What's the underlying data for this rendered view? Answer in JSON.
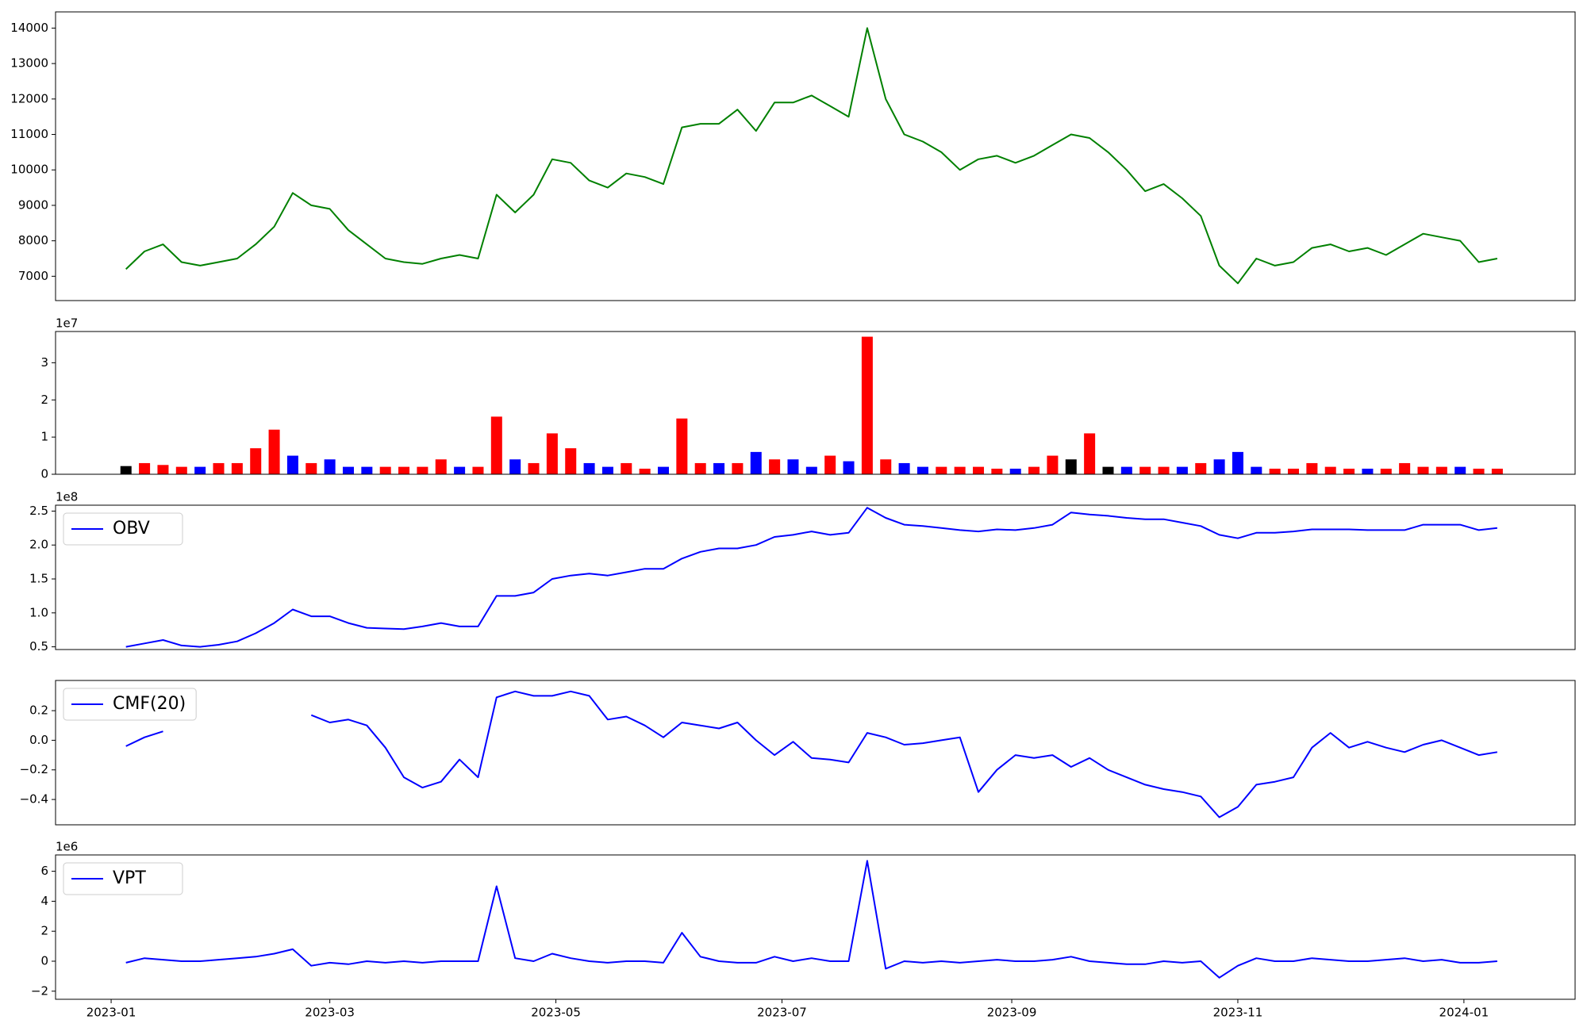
{
  "chart_data": [
    {
      "type": "line",
      "color": "green",
      "x": [
        4,
        9,
        14,
        19,
        24,
        29,
        34,
        39,
        44,
        49,
        54,
        59,
        64,
        69,
        74,
        79,
        84,
        89,
        94,
        99,
        104,
        109,
        114,
        119,
        124,
        129,
        134,
        139,
        144,
        149,
        154,
        159,
        164,
        169,
        174,
        179,
        184,
        189,
        194,
        199,
        204,
        209,
        214,
        219,
        224,
        229,
        234,
        239,
        244,
        249,
        254,
        259,
        264,
        269,
        274,
        279,
        284,
        289,
        294,
        299,
        304,
        309,
        314,
        319,
        324,
        329,
        334,
        339,
        344,
        349,
        354,
        359,
        364,
        369,
        374
      ],
      "values": [
        7200,
        7700,
        7900,
        7400,
        7300,
        7400,
        7500,
        7900,
        8400,
        9350,
        9000,
        8900,
        8300,
        7900,
        7500,
        7400,
        7350,
        7500,
        7600,
        7500,
        9300,
        8800,
        9300,
        10300,
        10200,
        9700,
        9500,
        9900,
        9800,
        9600,
        11200,
        11300,
        11300,
        11700,
        11100,
        11900,
        11900,
        12100,
        11800,
        11500,
        14000,
        12000,
        11000,
        10800,
        10500,
        10000,
        10300,
        10400,
        10200,
        10400,
        10700,
        11000,
        10900,
        10500,
        10000,
        9400,
        9600,
        9200,
        8700,
        7300,
        6800,
        7500,
        7300,
        7400,
        7800,
        7900,
        7700,
        7800,
        7600,
        7900,
        8200,
        8100,
        8000,
        7400,
        7500
      ],
      "xlim": [
        -15,
        395
      ],
      "ylim": [
        6314,
        14457
      ],
      "yticks": [
        7000,
        8000,
        9000,
        10000,
        11000,
        12000,
        13000,
        14000
      ]
    },
    {
      "type": "bar",
      "offset_label": "1e7",
      "x": [
        4,
        9,
        14,
        19,
        24,
        29,
        34,
        39,
        44,
        49,
        54,
        59,
        64,
        69,
        74,
        79,
        84,
        89,
        94,
        99,
        104,
        109,
        114,
        119,
        124,
        129,
        134,
        139,
        144,
        149,
        154,
        159,
        164,
        169,
        174,
        179,
        184,
        189,
        194,
        199,
        204,
        209,
        214,
        219,
        224,
        229,
        234,
        239,
        244,
        249,
        254,
        259,
        264,
        269,
        274,
        279,
        284,
        289,
        294,
        299,
        304,
        309,
        314,
        319,
        324,
        329,
        334,
        339,
        344,
        349,
        354,
        359,
        364,
        369,
        374
      ],
      "values": [
        0.22,
        0.3,
        0.25,
        0.2,
        0.2,
        0.3,
        0.3,
        0.7,
        1.2,
        0.5,
        0.3,
        0.4,
        0.2,
        0.2,
        0.2,
        0.2,
        0.2,
        0.4,
        0.2,
        0.2,
        1.55,
        0.4,
        0.3,
        1.1,
        0.7,
        0.3,
        0.2,
        0.3,
        0.15,
        0.2,
        1.5,
        0.3,
        0.3,
        0.3,
        0.6,
        0.4,
        0.4,
        0.2,
        0.5,
        0.35,
        3.7,
        0.4,
        0.3,
        0.2,
        0.2,
        0.2,
        0.2,
        0.15,
        0.15,
        0.2,
        0.5,
        0.4,
        1.1,
        0.2,
        0.2,
        0.2,
        0.2,
        0.2,
        0.3,
        0.4,
        0.6,
        0.2,
        0.15,
        0.15,
        0.3,
        0.2,
        0.15,
        0.15,
        0.15,
        0.3,
        0.2,
        0.2,
        0.2,
        0.15,
        0.15
      ],
      "colors": [
        "black",
        "red",
        "red",
        "red",
        "blue",
        "red",
        "red",
        "red",
        "red",
        "blue",
        "red",
        "blue",
        "blue",
        "blue",
        "red",
        "red",
        "red",
        "red",
        "blue",
        "red",
        "red",
        "blue",
        "red",
        "red",
        "red",
        "blue",
        "blue",
        "red",
        "red",
        "blue",
        "red",
        "red",
        "blue",
        "red",
        "blue",
        "red",
        "blue",
        "blue",
        "red",
        "blue",
        "red",
        "red",
        "blue",
        "blue",
        "red",
        "red",
        "red",
        "red",
        "blue",
        "red",
        "red",
        "black",
        "red",
        "black",
        "blue",
        "red",
        "red",
        "blue",
        "red",
        "blue",
        "blue",
        "blue",
        "red",
        "red",
        "red",
        "red",
        "red",
        "blue",
        "red",
        "red",
        "red",
        "red",
        "blue",
        "red",
        "red"
      ],
      "xlim": [
        -15,
        395
      ],
      "ylim": [
        0,
        3.84
      ],
      "yticks": [
        0,
        1,
        2,
        3
      ]
    },
    {
      "type": "line",
      "offset_label": "1e8",
      "legend": "upper left",
      "x": [
        4,
        9,
        14,
        19,
        24,
        29,
        34,
        39,
        44,
        49,
        54,
        59,
        64,
        69,
        74,
        79,
        84,
        89,
        94,
        99,
        104,
        109,
        114,
        119,
        124,
        129,
        134,
        139,
        144,
        149,
        154,
        159,
        164,
        169,
        174,
        179,
        184,
        189,
        194,
        199,
        204,
        209,
        214,
        219,
        224,
        229,
        234,
        239,
        244,
        249,
        254,
        259,
        264,
        269,
        274,
        279,
        284,
        289,
        294,
        299,
        304,
        309,
        314,
        319,
        324,
        329,
        334,
        339,
        344,
        349,
        354,
        359,
        364,
        369,
        374
      ],
      "series": [
        {
          "name": "OBV",
          "color": "blue",
          "values": [
            0.5,
            0.55,
            0.6,
            0.52,
            0.5,
            0.53,
            0.58,
            0.7,
            0.85,
            1.05,
            0.95,
            0.95,
            0.85,
            0.78,
            0.77,
            0.76,
            0.8,
            0.85,
            0.8,
            0.8,
            1.25,
            1.25,
            1.3,
            1.5,
            1.55,
            1.58,
            1.55,
            1.6,
            1.65,
            1.65,
            1.8,
            1.9,
            1.95,
            1.95,
            2.0,
            2.12,
            2.15,
            2.2,
            2.15,
            2.18,
            2.55,
            2.4,
            2.3,
            2.28,
            2.25,
            2.22,
            2.2,
            2.23,
            2.22,
            2.25,
            2.3,
            2.48,
            2.45,
            2.43,
            2.4,
            2.38,
            2.38,
            2.33,
            2.28,
            2.15,
            2.1,
            2.18,
            2.18,
            2.2,
            2.23,
            2.23,
            2.23,
            2.22,
            2.22,
            2.22,
            2.3,
            2.3,
            2.3,
            2.22,
            2.25
          ]
        }
      ],
      "xlim": [
        -15,
        395
      ],
      "ylim": [
        0.46,
        2.587
      ],
      "yticks": [
        0.5,
        {
          "value": 1,
          "label": "1.0"
        },
        1.5,
        {
          "value": 2,
          "label": "2.0"
        },
        2.5
      ]
    },
    {
      "type": "line",
      "legend": "upper left",
      "x": [
        4,
        9,
        14,
        19,
        24,
        29,
        34,
        39,
        44,
        49,
        54,
        59,
        64,
        69,
        74,
        79,
        84,
        89,
        94,
        99,
        104,
        109,
        114,
        119,
        124,
        129,
        134,
        139,
        144,
        149,
        154,
        159,
        164,
        169,
        174,
        179,
        184,
        189,
        194,
        199,
        204,
        209,
        214,
        219,
        224,
        229,
        234,
        239,
        244,
        249,
        254,
        259,
        264,
        269,
        274,
        279,
        284,
        289,
        294,
        299,
        304,
        309,
        314,
        319,
        324,
        329,
        334,
        339,
        344,
        349,
        354,
        359,
        364,
        369,
        374
      ],
      "series": [
        {
          "name": "CMF(20)",
          "color": "blue",
          "values": [
            -0.04,
            0.02,
            0.06,
            null,
            null,
            null,
            null,
            null,
            null,
            null,
            0.17,
            0.12,
            0.14,
            0.1,
            -0.05,
            -0.25,
            -0.32,
            -0.28,
            -0.13,
            -0.25,
            0.29,
            0.33,
            0.3,
            0.3,
            0.33,
            0.3,
            0.14,
            0.16,
            0.1,
            0.02,
            0.12,
            0.1,
            0.08,
            0.12,
            0.0,
            -0.1,
            -0.01,
            -0.12,
            -0.13,
            -0.15,
            0.05,
            0.02,
            -0.03,
            -0.02,
            0.0,
            0.02,
            -0.35,
            -0.2,
            -0.1,
            -0.12,
            -0.1,
            -0.18,
            -0.12,
            -0.2,
            -0.25,
            -0.3,
            -0.33,
            -0.35,
            -0.38,
            -0.52,
            -0.45,
            -0.3,
            -0.28,
            -0.25,
            -0.05,
            0.05,
            -0.05,
            -0.01,
            -0.05,
            -0.08,
            -0.03,
            0.0,
            -0.05,
            -0.1,
            -0.08
          ]
        }
      ],
      "xlim": [
        -15,
        395
      ],
      "ylim": [
        -0.571,
        0.404
      ],
      "yticks": [
        {
          "value": -0.4,
          "label": "−0.4"
        },
        {
          "value": -0.2,
          "label": "−0.2"
        },
        {
          "value": 0,
          "label": "0.0"
        },
        0.2
      ]
    },
    {
      "type": "line",
      "offset_label": "1e6",
      "legend": "upper left",
      "x": [
        4,
        9,
        14,
        19,
        24,
        29,
        34,
        39,
        44,
        49,
        54,
        59,
        64,
        69,
        74,
        79,
        84,
        89,
        94,
        99,
        104,
        109,
        114,
        119,
        124,
        129,
        134,
        139,
        144,
        149,
        154,
        159,
        164,
        169,
        174,
        179,
        184,
        189,
        194,
        199,
        204,
        209,
        214,
        219,
        224,
        229,
        234,
        239,
        244,
        249,
        254,
        259,
        264,
        269,
        274,
        279,
        284,
        289,
        294,
        299,
        304,
        309,
        314,
        319,
        324,
        329,
        334,
        339,
        344,
        349,
        354,
        359,
        364,
        369,
        374
      ],
      "series": [
        {
          "name": "VPT",
          "color": "blue",
          "values": [
            -0.1,
            0.2,
            0.1,
            0.0,
            0.0,
            0.1,
            0.2,
            0.3,
            0.5,
            0.8,
            -0.3,
            -0.1,
            -0.2,
            0.0,
            -0.1,
            0.0,
            -0.1,
            0.0,
            0.0,
            0.0,
            5.0,
            0.2,
            0.0,
            0.5,
            0.2,
            0.0,
            -0.1,
            0.0,
            0.0,
            -0.1,
            1.9,
            0.3,
            0.0,
            -0.1,
            -0.1,
            0.3,
            0.0,
            0.2,
            0.0,
            0.0,
            6.7,
            -0.5,
            0.0,
            -0.1,
            0.0,
            -0.1,
            0.0,
            0.1,
            0.0,
            0.0,
            0.1,
            0.3,
            0.0,
            -0.1,
            -0.2,
            -0.2,
            0.0,
            -0.1,
            0.0,
            -1.1,
            -0.3,
            0.2,
            0.0,
            0.0,
            0.2,
            0.1,
            0.0,
            0.0,
            0.1,
            0.2,
            0.0,
            0.1,
            -0.1,
            -0.1,
            0.0
          ]
        }
      ],
      "xlim": [
        -15,
        395
      ],
      "ylim": [
        -2.54,
        7.09
      ],
      "yticks": [
        {
          "value": -2,
          "label": "−2"
        },
        0,
        2,
        4,
        6
      ],
      "xticks": [
        {
          "value": 0,
          "label": "2023-01"
        },
        {
          "value": 59,
          "label": "2023-03"
        },
        {
          "value": 120,
          "label": "2023-05"
        },
        {
          "value": 181,
          "label": "2023-07"
        },
        {
          "value": 243,
          "label": "2023-09"
        },
        {
          "value": 304,
          "label": "2023-11"
        },
        {
          "value": 365,
          "label": "2024-01"
        }
      ]
    }
  ]
}
